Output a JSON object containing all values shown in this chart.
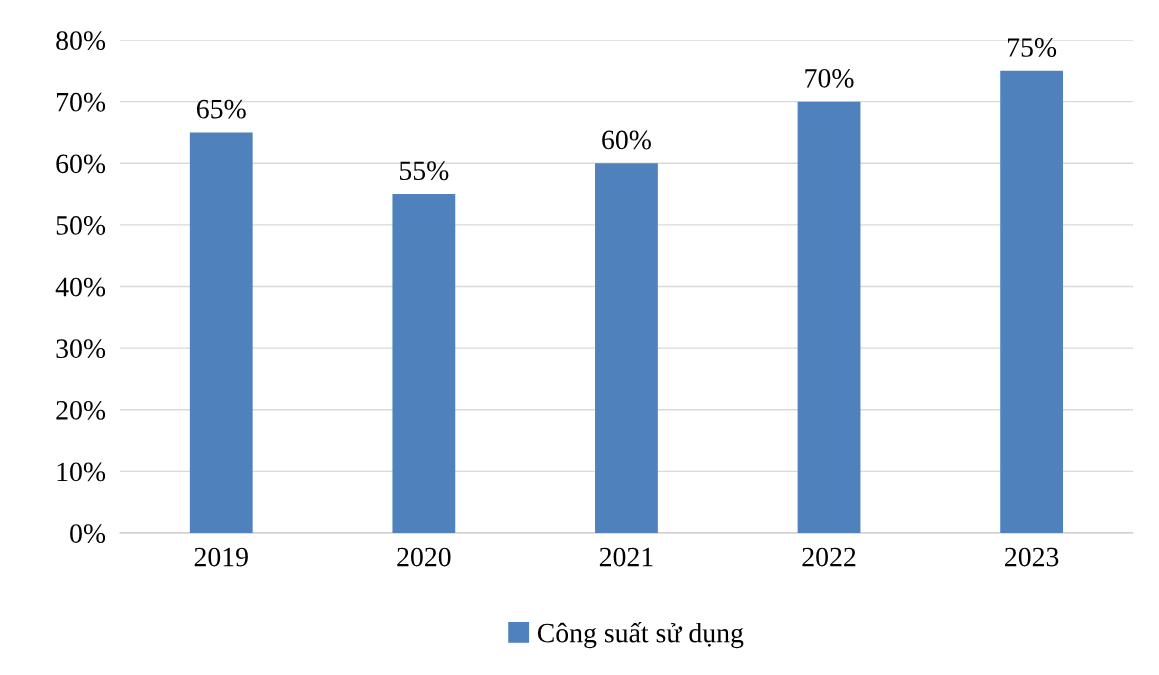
{
  "chart_data": {
    "type": "bar",
    "categories": [
      "2019",
      "2020",
      "2021",
      "2022",
      "2023"
    ],
    "series": [
      {
        "name": "Công suất sử dụng",
        "color": "#4f81bd",
        "values": [
          65,
          55,
          60,
          70,
          75
        ],
        "value_labels": [
          "65%",
          "55%",
          "60%",
          "70%",
          "75%"
        ]
      }
    ],
    "ylim": [
      0,
      80
    ],
    "yticks": [
      {
        "value": 0,
        "label": "0%"
      },
      {
        "value": 10,
        "label": "10%"
      },
      {
        "value": 20,
        "label": "20%"
      },
      {
        "value": 30,
        "label": "30%"
      },
      {
        "value": 40,
        "label": "40%"
      },
      {
        "value": 50,
        "label": "50%"
      },
      {
        "value": 60,
        "label": "60%"
      },
      {
        "value": 70,
        "label": "70%"
      },
      {
        "value": 80,
        "label": "80%"
      }
    ],
    "grid": "y",
    "legend": "bottom"
  }
}
